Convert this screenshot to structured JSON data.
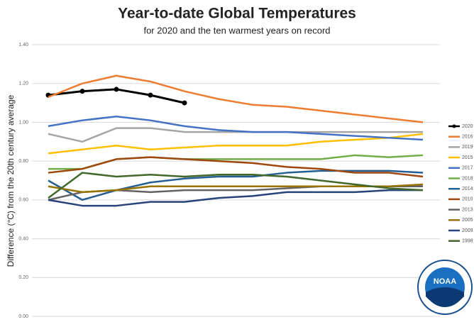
{
  "chart_data": {
    "type": "line",
    "title": "Year-to-date Global Temperatures",
    "subtitle": "for 2020 and the ten warmest years on record",
    "y_label": "Difference (°C) from the 20th century average",
    "categories": [
      null,
      null,
      null,
      null,
      null,
      null,
      null,
      null,
      null,
      null,
      null,
      null
    ],
    "ylim": [
      0,
      1.4
    ],
    "yticks": [
      {
        "value": 0,
        "label": "0.00"
      },
      {
        "value": 0.2,
        "label": "0.20"
      },
      {
        "value": 0.4,
        "label": "0.40"
      },
      {
        "value": 0.6,
        "label": "0.60"
      },
      {
        "value": 0.8,
        "label": "0.80"
      },
      {
        "value": 1.0,
        "label": "1.00"
      },
      {
        "value": 1.2,
        "label": "1.20"
      },
      {
        "value": 1.4,
        "label": "1.40"
      }
    ],
    "grid": true,
    "legend": "right",
    "series": [
      {
        "name": "2020",
        "color": "#000000",
        "markers": true,
        "values": [
          1.14,
          1.16,
          1.17,
          1.14,
          1.1,
          null,
          null,
          null,
          null,
          null,
          null,
          null
        ]
      },
      {
        "name": "2016",
        "color": "#ed7d31",
        "values": [
          1.13,
          1.2,
          1.24,
          1.21,
          1.16,
          1.12,
          1.09,
          1.08,
          1.06,
          1.04,
          1.02,
          1.0
        ]
      },
      {
        "name": "2019",
        "color": "#a5a5a5",
        "values": [
          0.94,
          0.9,
          0.97,
          0.97,
          0.95,
          0.95,
          0.95,
          0.95,
          0.95,
          0.95,
          0.95,
          0.95
        ]
      },
      {
        "name": "2015",
        "color": "#ffc000",
        "values": [
          0.84,
          0.86,
          0.88,
          0.86,
          0.87,
          0.88,
          0.88,
          0.88,
          0.9,
          0.91,
          0.92,
          0.94
        ]
      },
      {
        "name": "2017",
        "color": "#4472c4",
        "values": [
          0.98,
          1.01,
          1.03,
          1.01,
          0.98,
          0.96,
          0.95,
          0.95,
          0.94,
          0.93,
          0.92,
          0.91
        ]
      },
      {
        "name": "2018",
        "color": "#70ad47",
        "values": [
          0.76,
          0.76,
          0.81,
          0.82,
          0.81,
          0.81,
          0.81,
          0.81,
          0.81,
          0.83,
          0.82,
          0.83
        ]
      },
      {
        "name": "2014",
        "color": "#255e91",
        "values": [
          0.7,
          0.6,
          0.65,
          0.69,
          0.71,
          0.72,
          0.72,
          0.74,
          0.75,
          0.75,
          0.75,
          0.74
        ]
      },
      {
        "name": "2010",
        "color": "#9e480e",
        "values": [
          0.74,
          0.76,
          0.81,
          0.82,
          0.81,
          0.8,
          0.79,
          0.77,
          0.76,
          0.74,
          0.74,
          0.72
        ]
      },
      {
        "name": "2013",
        "color": "#636363",
        "values": [
          0.6,
          0.64,
          0.65,
          0.64,
          0.65,
          0.65,
          0.65,
          0.66,
          0.67,
          0.67,
          0.67,
          0.67
        ]
      },
      {
        "name": "2005",
        "color": "#997300",
        "values": [
          0.67,
          0.64,
          0.65,
          0.67,
          0.67,
          0.67,
          0.67,
          0.67,
          0.67,
          0.67,
          0.67,
          0.68
        ]
      },
      {
        "name": "2009",
        "color": "#264478",
        "values": [
          0.6,
          0.57,
          0.57,
          0.59,
          0.59,
          0.61,
          0.62,
          0.64,
          0.64,
          0.64,
          0.65,
          0.65
        ]
      },
      {
        "name": "1998",
        "color": "#43682b",
        "values": [
          0.61,
          0.74,
          0.72,
          0.73,
          0.72,
          0.73,
          0.73,
          0.72,
          0.7,
          0.68,
          0.66,
          0.65
        ]
      }
    ]
  },
  "logo": "NOAA"
}
